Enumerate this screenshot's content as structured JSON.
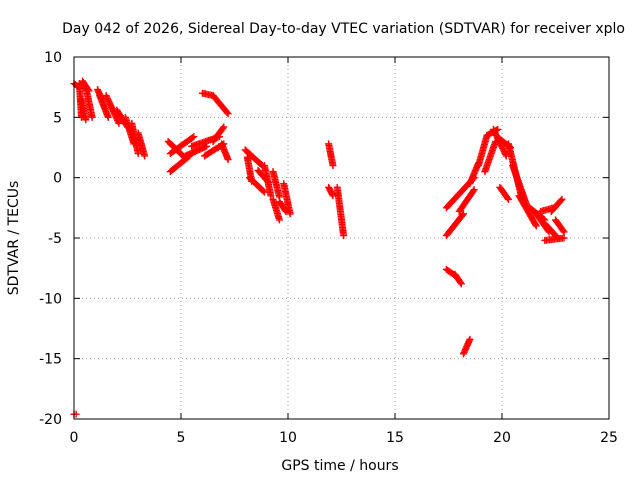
{
  "chart_data": {
    "type": "scatter",
    "title": "Day 042 of 2026, Sidereal Day-to-day VTEC variation (SDTVAR) for receiver xplo",
    "xlabel": "GPS time / hours",
    "ylabel": "SDTVAR / TECUs",
    "xlim": [
      0,
      25
    ],
    "ylim": [
      -20,
      10
    ],
    "xticks": [
      0,
      5,
      10,
      15,
      20,
      25
    ],
    "yticks": [
      -20,
      -15,
      -10,
      -5,
      0,
      5,
      10
    ],
    "grid": true,
    "marker": "plus",
    "marker_color": "#ff0000",
    "segments": [
      {
        "start": [
          0.0,
          7.8
        ],
        "end": [
          0.25,
          7.5
        ]
      },
      {
        "start": [
          0.25,
          7.8
        ],
        "end": [
          0.35,
          5.0
        ]
      },
      {
        "start": [
          0.35,
          6.5
        ],
        "end": [
          0.55,
          4.8
        ]
      },
      {
        "start": [
          0.4,
          8.0
        ],
        "end": [
          0.7,
          7.2
        ]
      },
      {
        "start": [
          0.55,
          7.5
        ],
        "end": [
          0.85,
          5.0
        ]
      },
      {
        "start": [
          1.1,
          7.3
        ],
        "end": [
          1.3,
          6.5
        ]
      },
      {
        "start": [
          1.2,
          6.8
        ],
        "end": [
          1.6,
          5.0
        ]
      },
      {
        "start": [
          1.5,
          6.8
        ],
        "end": [
          2.1,
          4.5
        ]
      },
      {
        "start": [
          2.0,
          5.6
        ],
        "end": [
          2.5,
          4.2
        ]
      },
      {
        "start": [
          2.4,
          5.0
        ],
        "end": [
          2.8,
          2.8
        ]
      },
      {
        "start": [
          2.7,
          4.5
        ],
        "end": [
          3.0,
          2.0
        ]
      },
      {
        "start": [
          3.0,
          3.7
        ],
        "end": [
          3.3,
          1.8
        ]
      },
      {
        "start": [
          4.4,
          3.0
        ],
        "end": [
          5.1,
          1.8
        ]
      },
      {
        "start": [
          4.5,
          2.0
        ],
        "end": [
          5.6,
          3.4
        ]
      },
      {
        "start": [
          4.5,
          0.5
        ],
        "end": [
          5.4,
          1.8
        ]
      },
      {
        "start": [
          5.2,
          1.8
        ],
        "end": [
          6.2,
          2.6
        ]
      },
      {
        "start": [
          5.5,
          2.6
        ],
        "end": [
          6.8,
          3.4
        ]
      },
      {
        "start": [
          6.1,
          1.8
        ],
        "end": [
          7.0,
          2.8
        ]
      },
      {
        "start": [
          6.5,
          3.0
        ],
        "end": [
          7.0,
          4.2
        ]
      },
      {
        "start": [
          6.9,
          2.8
        ],
        "end": [
          7.2,
          1.5
        ]
      },
      {
        "start": [
          6.0,
          7.0
        ],
        "end": [
          6.5,
          6.8
        ]
      },
      {
        "start": [
          6.5,
          6.8
        ],
        "end": [
          7.2,
          5.3
        ]
      },
      {
        "start": [
          8.0,
          2.3
        ],
        "end": [
          8.8,
          1.0
        ]
      },
      {
        "start": [
          8.1,
          1.7
        ],
        "end": [
          8.3,
          -0.3
        ]
      },
      {
        "start": [
          8.2,
          0.0
        ],
        "end": [
          8.9,
          -1.2
        ]
      },
      {
        "start": [
          8.9,
          1.0
        ],
        "end": [
          9.2,
          -1.5
        ]
      },
      {
        "start": [
          8.6,
          0.6
        ],
        "end": [
          9.1,
          -0.4
        ]
      },
      {
        "start": [
          9.3,
          0.5
        ],
        "end": [
          9.6,
          -1.6
        ]
      },
      {
        "start": [
          9.3,
          -1.8
        ],
        "end": [
          9.6,
          -3.5
        ]
      },
      {
        "start": [
          9.6,
          -2.0
        ],
        "end": [
          9.9,
          -2.8
        ]
      },
      {
        "start": [
          9.8,
          -0.5
        ],
        "end": [
          10.1,
          -3.0
        ]
      },
      {
        "start": [
          11.9,
          2.8
        ],
        "end": [
          12.1,
          1.0
        ]
      },
      {
        "start": [
          11.9,
          -0.8
        ],
        "end": [
          12.1,
          -1.5
        ]
      },
      {
        "start": [
          12.3,
          -0.8
        ],
        "end": [
          12.6,
          -4.8
        ]
      },
      {
        "start": [
          17.4,
          -2.5
        ],
        "end": [
          18.7,
          0.0
        ]
      },
      {
        "start": [
          17.4,
          -4.8
        ],
        "end": [
          18.2,
          -3.0
        ]
      },
      {
        "start": [
          18.0,
          -2.8
        ],
        "end": [
          18.7,
          -1.0
        ]
      },
      {
        "start": [
          18.5,
          -0.5
        ],
        "end": [
          18.9,
          1.2
        ]
      },
      {
        "start": [
          18.9,
          1.0
        ],
        "end": [
          19.3,
          3.5
        ]
      },
      {
        "start": [
          19.2,
          0.5
        ],
        "end": [
          19.7,
          3.0
        ]
      },
      {
        "start": [
          19.3,
          3.5
        ],
        "end": [
          19.8,
          4.0
        ]
      },
      {
        "start": [
          19.6,
          4.0
        ],
        "end": [
          20.2,
          1.8
        ]
      },
      {
        "start": [
          19.9,
          3.2
        ],
        "end": [
          20.4,
          2.5
        ]
      },
      {
        "start": [
          20.3,
          2.8
        ],
        "end": [
          20.9,
          -1.5
        ]
      },
      {
        "start": [
          20.5,
          1.0
        ],
        "end": [
          21.2,
          -2.5
        ]
      },
      {
        "start": [
          19.9,
          -0.8
        ],
        "end": [
          20.3,
          -1.8
        ]
      },
      {
        "start": [
          20.8,
          -1.5
        ],
        "end": [
          21.6,
          -4.0
        ]
      },
      {
        "start": [
          21.3,
          -2.5
        ],
        "end": [
          22.0,
          -3.5
        ]
      },
      {
        "start": [
          21.6,
          -3.0
        ],
        "end": [
          22.2,
          -4.5
        ]
      },
      {
        "start": [
          21.8,
          -2.8
        ],
        "end": [
          22.4,
          -2.5
        ]
      },
      {
        "start": [
          22.0,
          -3.8
        ],
        "end": [
          22.6,
          -5.0
        ]
      },
      {
        "start": [
          22.0,
          -5.2
        ],
        "end": [
          22.9,
          -5.0
        ]
      },
      {
        "start": [
          22.3,
          -2.8
        ],
        "end": [
          22.8,
          -1.8
        ]
      },
      {
        "start": [
          22.5,
          -3.5
        ],
        "end": [
          22.9,
          -4.5
        ]
      },
      {
        "start": [
          17.4,
          -7.6
        ],
        "end": [
          17.8,
          -8.1
        ]
      },
      {
        "start": [
          17.8,
          -8.0
        ],
        "end": [
          18.1,
          -8.8
        ]
      },
      {
        "start": [
          18.2,
          -14.6
        ],
        "end": [
          18.5,
          -13.4
        ]
      },
      {
        "start": [
          0.0,
          -19.6
        ],
        "end": [
          0.1,
          -19.6
        ]
      }
    ]
  }
}
